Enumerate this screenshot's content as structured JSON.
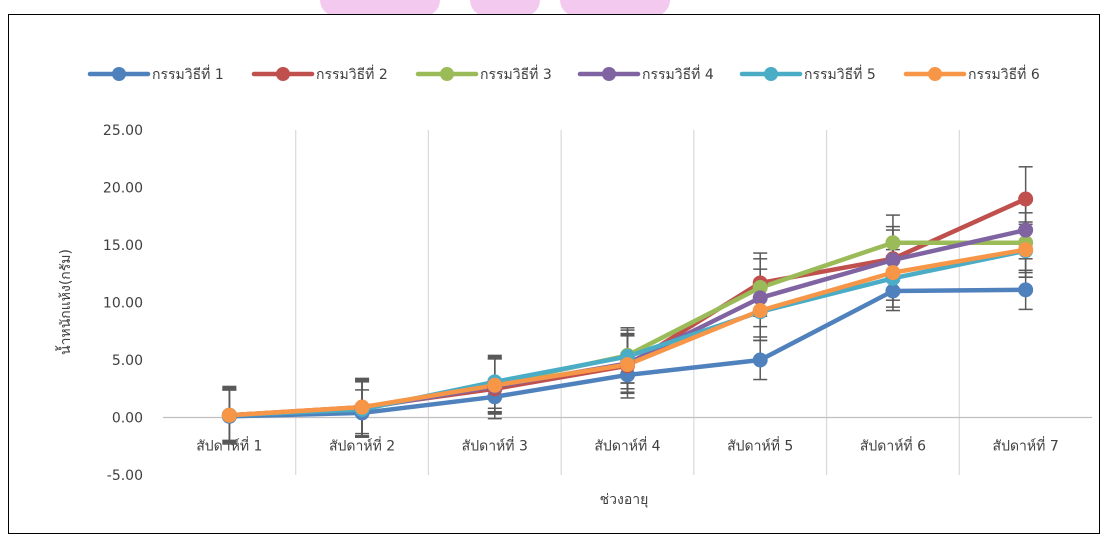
{
  "chart_data": {
    "type": "line",
    "title": "",
    "xlabel": "ช่วงอายุ",
    "ylabel": "น้ำหนักแห้ง(กรัม)",
    "ylim": [
      -5,
      25
    ],
    "yticks": [
      "-5.00",
      "0.00",
      "5.00",
      "10.00",
      "15.00",
      "20.00",
      "25.00"
    ],
    "categories": [
      "สัปดาห์ที่ 1",
      "สัปดาห์ที่ 2",
      "สัปดาห์ที่ 3",
      "สัปดาห์ที่ 4",
      "สัปดาห์ที่ 5",
      "สัปดาห์ที่ 6",
      "สัปดาห์ที่ 7"
    ],
    "grid": "vertical",
    "legend_position": "top",
    "error_bars": true,
    "series": [
      {
        "name": "กรรมวิธีที่ 1",
        "color": "#4f81bd",
        "values": [
          0.1,
          0.4,
          1.8,
          3.7,
          5.0,
          11.0,
          11.1
        ],
        "errors": [
          2.3,
          2.0,
          1.3,
          1.2,
          1.7,
          1.7,
          1.7
        ]
      },
      {
        "name": "กรรมวิธีที่ 2",
        "color": "#c0504d",
        "values": [
          0.2,
          0.9,
          2.5,
          4.5,
          11.7,
          13.8,
          19.0
        ],
        "errors": [
          2.5,
          2.5,
          2.6,
          2.8,
          2.6,
          2.8,
          2.8
        ]
      },
      {
        "name": "กรรมวิธีที่ 3",
        "color": "#9bbb59",
        "values": [
          0.2,
          0.8,
          2.9,
          5.4,
          11.3,
          15.2,
          15.2
        ],
        "errors": [
          2.3,
          2.5,
          2.4,
          2.4,
          2.5,
          2.4,
          2.6
        ]
      },
      {
        "name": "กรรมวิธีที่ 4",
        "color": "#8064a2",
        "values": [
          0.2,
          0.8,
          2.7,
          4.7,
          10.4,
          13.7,
          16.3
        ],
        "errors": [
          2.2,
          2.5,
          2.4,
          2.5,
          2.5,
          2.6,
          2.5
        ]
      },
      {
        "name": "กรรมวิธีที่ 5",
        "color": "#4bacc6",
        "values": [
          0.2,
          0.7,
          3.1,
          5.3,
          9.2,
          12.1,
          14.5
        ],
        "errors": [
          2.2,
          2.4,
          2.3,
          2.3,
          2.5,
          2.5,
          2.3
        ]
      },
      {
        "name": "กรรมวิธีที่ 6",
        "color": "#f79646",
        "values": [
          0.2,
          0.9,
          2.8,
          4.6,
          9.3,
          12.6,
          14.6
        ],
        "errors": [
          2.4,
          2.3,
          2.4,
          2.5,
          2.3,
          2.4,
          2.4
        ]
      }
    ]
  }
}
